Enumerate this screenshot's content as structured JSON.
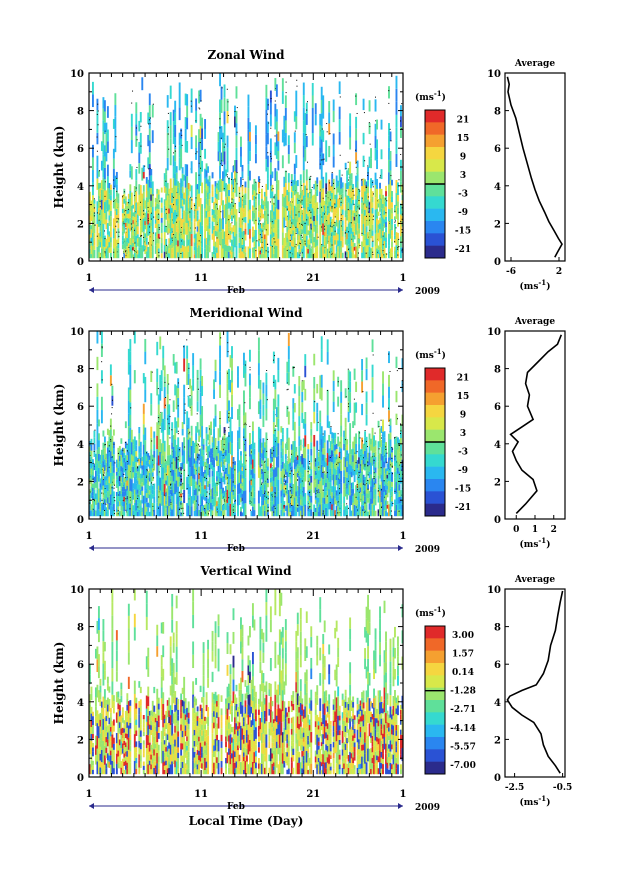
{
  "chart_data": [
    {
      "type": "heatmap",
      "title": "Zonal Wind",
      "ylabel": "Height (km)",
      "xlabel": "",
      "x_ticks": [
        "1",
        "11",
        "21",
        "1"
      ],
      "x_month": "Feb",
      "year": "2009",
      "ylim": [
        0,
        10
      ],
      "y_ticks": [
        "0",
        "2",
        "4",
        "6",
        "8",
        "10"
      ],
      "colorbar_unit": "(ms",
      "colorbar_unit_exp": "-1",
      "colorbar_unit_close": ")",
      "colorbar_ticks": [
        "21",
        "15",
        "9",
        "3",
        "-3",
        "-9",
        "-15",
        "-21"
      ],
      "colorbar_range": [
        -24,
        24
      ],
      "colorbar_zero_line": 0,
      "colors": [
        "#2b2b8c",
        "#2a52d4",
        "#2a86f0",
        "#2ab8f0",
        "#35d9d0",
        "#5fe09a",
        "#9be66e",
        "#d8e84a",
        "#f5d640",
        "#f5a030",
        "#f06828",
        "#e02a2a"
      ],
      "dominant_low": [
        "#9be66e",
        "#d8e84a",
        "#f5d640",
        "#5fe09a",
        "#35d9d0"
      ],
      "dominant_high": [
        "#2ab8f0",
        "#35d9d0",
        "#2a86f0",
        "#5fe09a"
      ],
      "average": {
        "title": "Average",
        "xlabel": "(ms",
        "xlabel_exp": "-1",
        "xlabel_close": ")",
        "xlim": [
          -7,
          3
        ],
        "x_ticks": [
          {
            "v": -6,
            "label": "-6"
          },
          {
            "v": 2,
            "label": "2"
          }
        ],
        "profile": [
          [
            1.3,
            0.2
          ],
          [
            1.8,
            0.5
          ],
          [
            2.5,
            0.9
          ],
          [
            1.9,
            1.2
          ],
          [
            1.2,
            1.6
          ],
          [
            0.3,
            2.1
          ],
          [
            -0.4,
            2.6
          ],
          [
            -1.3,
            3.2
          ],
          [
            -2.0,
            3.8
          ],
          [
            -2.6,
            4.4
          ],
          [
            -3.3,
            5.2
          ],
          [
            -4.0,
            6.0
          ],
          [
            -4.6,
            6.8
          ],
          [
            -5.2,
            7.6
          ],
          [
            -6.0,
            8.3
          ],
          [
            -6.5,
            9.0
          ],
          [
            -6.3,
            9.4
          ],
          [
            -6.6,
            9.8
          ]
        ]
      }
    },
    {
      "type": "heatmap",
      "title": "Meridional Wind",
      "ylabel": "Height (km)",
      "xlabel": "",
      "x_ticks": [
        "1",
        "11",
        "21",
        "1"
      ],
      "x_month": "Feb",
      "year": "2009",
      "ylim": [
        0,
        10
      ],
      "y_ticks": [
        "0",
        "2",
        "4",
        "6",
        "8",
        "10"
      ],
      "colorbar_unit": "(ms",
      "colorbar_unit_exp": "-1",
      "colorbar_unit_close": ")",
      "colorbar_ticks": [
        "21",
        "15",
        "9",
        "3",
        "-3",
        "-9",
        "-15",
        "-21"
      ],
      "colorbar_range": [
        -24,
        24
      ],
      "colorbar_zero_line": 0,
      "colors": [
        "#2b2b8c",
        "#2a52d4",
        "#2a86f0",
        "#2ab8f0",
        "#35d9d0",
        "#5fe09a",
        "#9be66e",
        "#d8e84a",
        "#f5d640",
        "#f5a030",
        "#f06828",
        "#e02a2a"
      ],
      "dominant_low": [
        "#35d9d0",
        "#2ab8f0",
        "#5fe09a",
        "#9be66e",
        "#2a86f0"
      ],
      "dominant_high": [
        "#5fe09a",
        "#9be66e",
        "#35d9d0",
        "#2ab8f0"
      ],
      "average": {
        "title": "Average",
        "xlabel": "(ms",
        "xlabel_exp": "-1",
        "xlabel_close": ")",
        "xlim": [
          -0.6,
          2.6
        ],
        "x_ticks": [
          {
            "v": 0,
            "label": "0"
          },
          {
            "v": 1,
            "label": "1"
          },
          {
            "v": 2,
            "label": "2"
          }
        ],
        "profile": [
          [
            0.0,
            0.3
          ],
          [
            0.5,
            0.8
          ],
          [
            1.1,
            1.5
          ],
          [
            0.9,
            2.1
          ],
          [
            0.3,
            2.6
          ],
          [
            0.0,
            3.1
          ],
          [
            -0.2,
            3.6
          ],
          [
            0.1,
            4.1
          ],
          [
            -0.3,
            4.5
          ],
          [
            0.3,
            4.9
          ],
          [
            0.9,
            5.3
          ],
          [
            0.6,
            6.0
          ],
          [
            0.7,
            6.6
          ],
          [
            0.5,
            7.2
          ],
          [
            0.6,
            7.8
          ],
          [
            1.1,
            8.3
          ],
          [
            1.7,
            8.9
          ],
          [
            2.2,
            9.3
          ],
          [
            2.4,
            9.8
          ]
        ]
      }
    },
    {
      "type": "heatmap",
      "title": "Vertical Wind",
      "ylabel": "Height (km)",
      "xlabel": "Local Time (Day)",
      "x_ticks": [
        "1",
        "11",
        "21",
        "1"
      ],
      "x_month": "Feb",
      "year": "2009",
      "ylim": [
        0,
        10
      ],
      "y_ticks": [
        "0",
        "2",
        "4",
        "6",
        "8",
        "10"
      ],
      "colorbar_unit": "(ms",
      "colorbar_unit_exp": "-1",
      "colorbar_unit_close": ")",
      "colorbar_ticks": [
        "3.00",
        "1.57",
        "0.14",
        "-1.28",
        "-2.71",
        "-4.14",
        "-5.57",
        "-7.00"
      ],
      "colorbar_range": [
        -7.7,
        3.7
      ],
      "colorbar_zero_line": -1.28,
      "colors": [
        "#2b2b8c",
        "#2a52d4",
        "#2a86f0",
        "#2ab8f0",
        "#35d9d0",
        "#5fe09a",
        "#9be66e",
        "#d8e84a",
        "#f5d640",
        "#f5a030",
        "#f06828",
        "#e02a2a"
      ],
      "dominant_low": [
        "#d8e84a",
        "#9be66e",
        "#c8ea58",
        "#f5d640",
        "#e02a2a",
        "#2a52d4"
      ],
      "dominant_high": [
        "#9be66e",
        "#b5e862",
        "#5fe09a"
      ],
      "average": {
        "title": "Average",
        "xlabel": "(ms",
        "xlabel_exp": "-1",
        "xlabel_close": ")",
        "xlim": [
          -2.9,
          -0.4
        ],
        "x_ticks": [
          {
            "v": -2.5,
            "label": "-2.5"
          },
          {
            "v": -0.5,
            "label": "-0.5"
          }
        ],
        "profile": [
          [
            -0.6,
            0.2
          ],
          [
            -0.8,
            0.6
          ],
          [
            -1.1,
            1.1
          ],
          [
            -1.3,
            1.7
          ],
          [
            -1.4,
            2.3
          ],
          [
            -1.7,
            2.9
          ],
          [
            -2.2,
            3.3
          ],
          [
            -2.6,
            3.7
          ],
          [
            -2.8,
            4.1
          ],
          [
            -2.7,
            4.3
          ],
          [
            -2.2,
            4.6
          ],
          [
            -1.6,
            4.9
          ],
          [
            -1.3,
            5.5
          ],
          [
            -1.1,
            6.2
          ],
          [
            -1.0,
            7.0
          ],
          [
            -0.8,
            7.8
          ],
          [
            -0.7,
            8.6
          ],
          [
            -0.6,
            9.3
          ],
          [
            -0.5,
            9.9
          ]
        ]
      }
    }
  ]
}
